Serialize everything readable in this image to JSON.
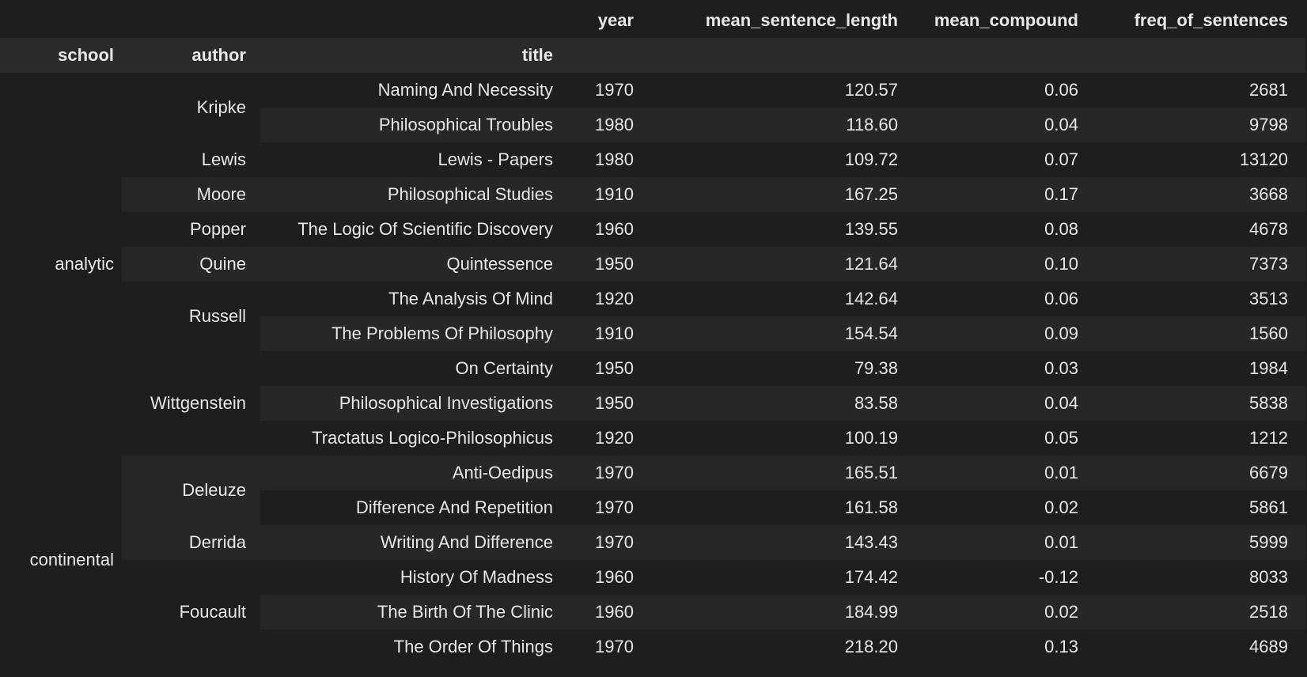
{
  "columns": {
    "index_names": [
      "school",
      "author",
      "title"
    ],
    "values": [
      "year",
      "mean_sentence_length",
      "mean_compound",
      "freq_of_sentences"
    ]
  },
  "rows": [
    {
      "school": "analytic",
      "author": "Kripke",
      "title": "Naming And Necessity",
      "year": "1970",
      "mean_sentence_length": "120.57",
      "mean_compound": "0.06",
      "freq_of_sentences": "2681"
    },
    {
      "school": "",
      "author": "",
      "title": "Philosophical Troubles",
      "year": "1980",
      "mean_sentence_length": "118.60",
      "mean_compound": "0.04",
      "freq_of_sentences": "9798"
    },
    {
      "school": "",
      "author": "Lewis",
      "title": "Lewis - Papers",
      "year": "1980",
      "mean_sentence_length": "109.72",
      "mean_compound": "0.07",
      "freq_of_sentences": "13120"
    },
    {
      "school": "",
      "author": "Moore",
      "title": "Philosophical Studies",
      "year": "1910",
      "mean_sentence_length": "167.25",
      "mean_compound": "0.17",
      "freq_of_sentences": "3668"
    },
    {
      "school": "",
      "author": "Popper",
      "title": "The Logic Of Scientific Discovery",
      "year": "1960",
      "mean_sentence_length": "139.55",
      "mean_compound": "0.08",
      "freq_of_sentences": "4678"
    },
    {
      "school": "",
      "author": "Quine",
      "title": "Quintessence",
      "year": "1950",
      "mean_sentence_length": "121.64",
      "mean_compound": "0.10",
      "freq_of_sentences": "7373"
    },
    {
      "school": "",
      "author": "Russell",
      "title": "The Analysis Of Mind",
      "year": "1920",
      "mean_sentence_length": "142.64",
      "mean_compound": "0.06",
      "freq_of_sentences": "3513"
    },
    {
      "school": "",
      "author": "",
      "title": "The Problems Of Philosophy",
      "year": "1910",
      "mean_sentence_length": "154.54",
      "mean_compound": "0.09",
      "freq_of_sentences": "1560"
    },
    {
      "school": "",
      "author": "Wittgenstein",
      "title": "On Certainty",
      "year": "1950",
      "mean_sentence_length": "79.38",
      "mean_compound": "0.03",
      "freq_of_sentences": "1984"
    },
    {
      "school": "",
      "author": "",
      "title": "Philosophical Investigations",
      "year": "1950",
      "mean_sentence_length": "83.58",
      "mean_compound": "0.04",
      "freq_of_sentences": "5838"
    },
    {
      "school": "",
      "author": "",
      "title": "Tractatus Logico-Philosophicus",
      "year": "1920",
      "mean_sentence_length": "100.19",
      "mean_compound": "0.05",
      "freq_of_sentences": "1212"
    },
    {
      "school": "continental",
      "author": "Deleuze",
      "title": "Anti-Oedipus",
      "year": "1970",
      "mean_sentence_length": "165.51",
      "mean_compound": "0.01",
      "freq_of_sentences": "6679"
    },
    {
      "school": "",
      "author": "",
      "title": "Difference And Repetition",
      "year": "1970",
      "mean_sentence_length": "161.58",
      "mean_compound": "0.02",
      "freq_of_sentences": "5861"
    },
    {
      "school": "",
      "author": "Derrida",
      "title": "Writing And Difference",
      "year": "1970",
      "mean_sentence_length": "143.43",
      "mean_compound": "0.01",
      "freq_of_sentences": "5999"
    },
    {
      "school": "",
      "author": "Foucault",
      "title": "History Of Madness",
      "year": "1960",
      "mean_sentence_length": "174.42",
      "mean_compound": "-0.12",
      "freq_of_sentences": "8033"
    },
    {
      "school": "",
      "author": "",
      "title": "The Birth Of The Clinic",
      "year": "1960",
      "mean_sentence_length": "184.99",
      "mean_compound": "0.02",
      "freq_of_sentences": "2518"
    },
    {
      "school": "",
      "author": "",
      "title": "The Order Of Things",
      "year": "1970",
      "mean_sentence_length": "218.20",
      "mean_compound": "0.13",
      "freq_of_sentences": "4689"
    }
  ],
  "groups": {
    "school": [
      {
        "label": "analytic",
        "start": 0,
        "span": 11
      },
      {
        "label": "continental",
        "start": 11,
        "span": 6
      }
    ],
    "author": [
      {
        "label": "Kripke",
        "start": 0,
        "span": 2
      },
      {
        "label": "Lewis",
        "start": 2,
        "span": 1
      },
      {
        "label": "Moore",
        "start": 3,
        "span": 1
      },
      {
        "label": "Popper",
        "start": 4,
        "span": 1
      },
      {
        "label": "Quine",
        "start": 5,
        "span": 1
      },
      {
        "label": "Russell",
        "start": 6,
        "span": 2
      },
      {
        "label": "Wittgenstein",
        "start": 8,
        "span": 3
      },
      {
        "label": "Deleuze",
        "start": 11,
        "span": 2
      },
      {
        "label": "Derrida",
        "start": 13,
        "span": 1
      },
      {
        "label": "Foucault",
        "start": 14,
        "span": 3
      }
    ]
  },
  "colors": {
    "background": "#1e1e1e",
    "row_stripe": "#272727",
    "header_band": "#2b2b2b",
    "text": "#e6e6e6"
  }
}
